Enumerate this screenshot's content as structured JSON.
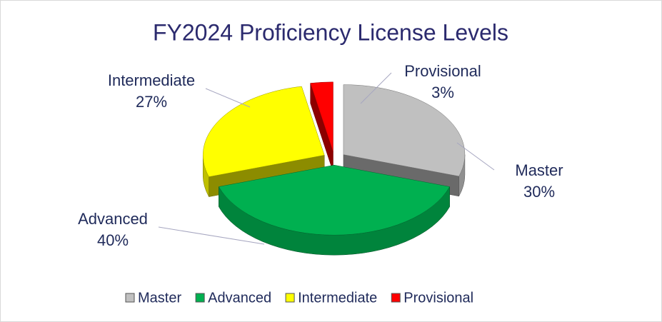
{
  "chart_data": {
    "type": "pie3d",
    "title": "FY2024 Proficiency License Levels",
    "categories": [
      "Master",
      "Advanced",
      "Intermediate",
      "Provisional"
    ],
    "values": [
      30,
      40,
      27,
      3
    ],
    "value_labels": [
      "30%",
      "40%",
      "27%",
      "3%"
    ],
    "colors": [
      "#c0c0c0",
      "#00b050",
      "#ffff00",
      "#ff0000"
    ],
    "legend": "bottom"
  }
}
